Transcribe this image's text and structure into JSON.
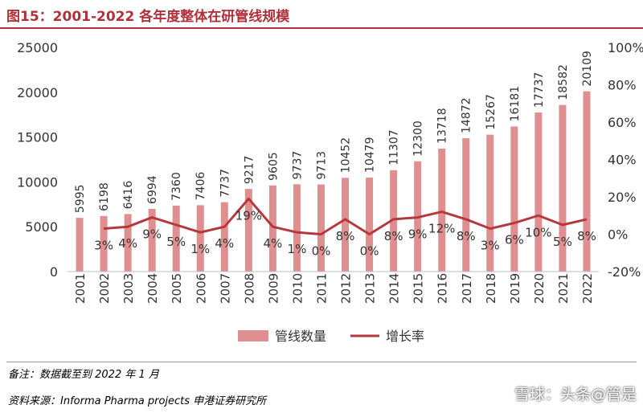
{
  "header": {
    "title": "图15：2001-2022 各年度整体在研管线规模"
  },
  "footer": {
    "note": "备注：数据截至到 2022 年 1 月",
    "source": "资料来源：Informa Pharma projects 申港证券研究所"
  },
  "watermark": {
    "text": "雪球：头条@管是"
  },
  "colors": {
    "bar": "#df8f8f",
    "line": "#b5383c",
    "title": "#b0313a",
    "text": "#333333"
  },
  "chart_data": {
    "type": "bar",
    "categories": [
      "2001",
      "2002",
      "2003",
      "2004",
      "2005",
      "2006",
      "2007",
      "2008",
      "2009",
      "2010",
      "2011",
      "2012",
      "2013",
      "2014",
      "2015",
      "2016",
      "2017",
      "2018",
      "2019",
      "2020",
      "2021",
      "2022"
    ],
    "series": [
      {
        "name": "管线数量",
        "type": "bar",
        "axis": "left",
        "values": [
          5995,
          6198,
          6416,
          6994,
          7360,
          7406,
          7737,
          9217,
          9605,
          9737,
          9713,
          10452,
          10479,
          11307,
          12300,
          13718,
          14872,
          15267,
          16181,
          17737,
          18582,
          20109
        ],
        "labels": [
          "5995",
          "6198",
          "6416",
          "6994",
          "7360",
          "7406",
          "7737",
          "9217",
          "9605",
          "9737",
          "9713",
          "10452",
          "10479",
          "11307",
          "12300",
          "13718",
          "14872",
          "15267",
          "16181",
          "17737",
          "18582",
          "20109"
        ]
      },
      {
        "name": "增长率",
        "type": "line",
        "axis": "right",
        "values": [
          null,
          3,
          4,
          9,
          5,
          1,
          4,
          19,
          4,
          1,
          0,
          8,
          0,
          8,
          9,
          12,
          8,
          3,
          6,
          10,
          5,
          8
        ],
        "labels": [
          "",
          "3%",
          "4%",
          "9%",
          "5%",
          "1%",
          "4%",
          "19%",
          "4%",
          "1%",
          "0%",
          "8%",
          "0%",
          "8%",
          "9%",
          "12%",
          "8%",
          "3%",
          "6%",
          "10%",
          "5%",
          "8%"
        ]
      }
    ],
    "y_left": {
      "min": 0,
      "max": 25000,
      "ticks": [
        "0",
        "5000",
        "10000",
        "15000",
        "20000",
        "25000"
      ]
    },
    "y_right": {
      "min": -20,
      "max": 100,
      "ticks": [
        "-20%",
        "0%",
        "20%",
        "40%",
        "60%",
        "80%",
        "100%"
      ]
    },
    "grid": false,
    "legend": "bottom"
  }
}
